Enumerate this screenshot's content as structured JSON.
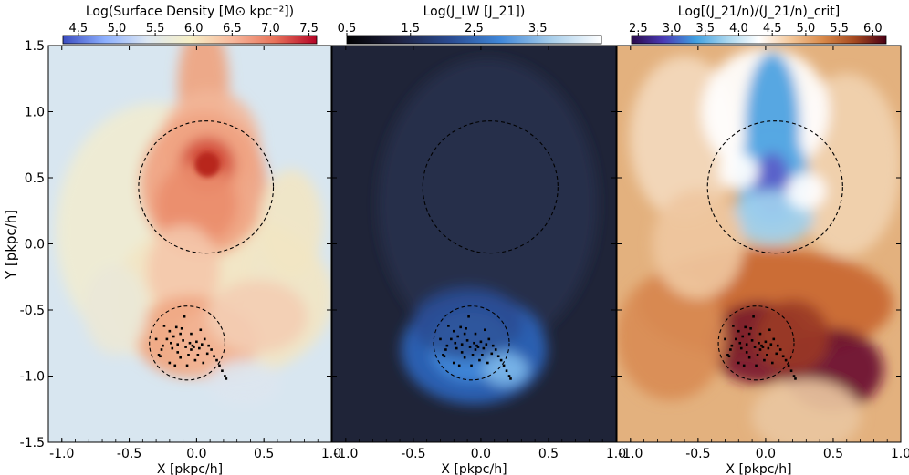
{
  "figure": {
    "shared_ylabel": "Y [pkpc/h]"
  },
  "chart_data": [
    {
      "type": "heatmap",
      "panel": "surface-density",
      "colorbar": {
        "title": "Log(Surface Density [M⊙ kpc⁻²])",
        "ticks": [
          "4.5",
          "5.0",
          "5.5",
          "6.0",
          "6.5",
          "7.0",
          "7.5"
        ],
        "range": [
          4.3,
          7.6
        ],
        "cmap": [
          "#3b4cc0",
          "#8db0fe",
          "#dde7f2",
          "#f6efc6",
          "#f7b89c",
          "#e8735a",
          "#b40426"
        ]
      },
      "xlabel": "X [pkpc/h]",
      "ylabel": "Y [pkpc/h]",
      "xlim": [
        -1.1,
        1.0
      ],
      "ylim": [
        -1.5,
        1.5
      ],
      "x_ticks": [
        "-1.0",
        "-0.5",
        "0.0",
        "0.5",
        "1.0"
      ],
      "y_ticks": [
        "1.5",
        "1.0",
        "0.5",
        "0.0",
        "-0.5",
        "-1.0",
        "-1.5"
      ],
      "circles": [
        {
          "cx": 0.07,
          "cy": 0.43,
          "r": 0.5
        },
        {
          "cx": -0.07,
          "cy": -0.75,
          "r": 0.28
        }
      ]
    },
    {
      "type": "heatmap",
      "panel": "lw-intensity",
      "colorbar": {
        "title": "Log(J_LW [J_21])",
        "ticks": [
          "0.5",
          "1.5",
          "2.5",
          "3.5"
        ],
        "range": [
          0.5,
          4.5
        ],
        "cmap": [
          "#000000",
          "#1f2240",
          "#2a4a8f",
          "#3f86d8",
          "#a6cdea",
          "#ffffff"
        ]
      },
      "xlabel": "X [pkpc/h]",
      "xlim": [
        -1.1,
        1.0
      ],
      "ylim": [
        -1.5,
        1.5
      ],
      "x_ticks": [
        "-1.0",
        "-0.5",
        "0.0",
        "0.5",
        "1.0"
      ],
      "circles": [
        {
          "cx": 0.07,
          "cy": 0.43,
          "r": 0.5
        },
        {
          "cx": -0.07,
          "cy": -0.75,
          "r": 0.28
        }
      ]
    },
    {
      "type": "heatmap",
      "panel": "critical-ratio",
      "colorbar": {
        "title": "Log[(J_21/n)/(J_21/n)_crit]",
        "ticks": [
          "2.5",
          "3.0",
          "3.5",
          "4.0",
          "4.5",
          "5.0",
          "5.5",
          "6.0"
        ],
        "range": [
          2.4,
          6.2
        ],
        "cmap": [
          "#2a0a4a",
          "#4a3ab5",
          "#3f9fe0",
          "#a8d6ee",
          "#ffffff",
          "#f3c79a",
          "#d98a4a",
          "#a64a20",
          "#4a0015"
        ]
      },
      "xlabel": "X [pkpc/h]",
      "xlim": [
        -1.1,
        1.0
      ],
      "ylim": [
        -1.5,
        1.5
      ],
      "x_ticks": [
        "-1.0",
        "-0.5",
        "0.0",
        "0.5",
        "1.0"
      ],
      "circles": [
        {
          "cx": 0.07,
          "cy": 0.43,
          "r": 0.5
        },
        {
          "cx": -0.07,
          "cy": -0.75,
          "r": 0.28
        }
      ]
    }
  ],
  "scatter_points": [
    [
      -0.24,
      -0.62
    ],
    [
      -0.2,
      -0.66
    ],
    [
      -0.17,
      -0.7
    ],
    [
      -0.15,
      -0.63
    ],
    [
      -0.12,
      -0.68
    ],
    [
      -0.1,
      -0.73
    ],
    [
      -0.22,
      -0.72
    ],
    [
      -0.26,
      -0.8
    ],
    [
      -0.28,
      -0.84
    ],
    [
      -0.27,
      -0.85
    ],
    [
      -0.18,
      -0.79
    ],
    [
      -0.14,
      -0.76
    ],
    [
      -0.08,
      -0.78
    ],
    [
      -0.05,
      -0.75
    ],
    [
      -0.04,
      -0.8
    ],
    [
      -0.02,
      -0.78
    ],
    [
      -0.03,
      -0.77
    ],
    [
      0.0,
      -0.74
    ],
    [
      0.02,
      -0.79
    ],
    [
      0.04,
      -0.76
    ],
    [
      0.06,
      -0.72
    ],
    [
      0.09,
      -0.77
    ],
    [
      0.11,
      -0.8
    ],
    [
      0.13,
      -0.85
    ],
    [
      0.15,
      -0.88
    ],
    [
      0.17,
      -0.92
    ],
    [
      0.19,
      -0.96
    ],
    [
      0.21,
      -1.0
    ],
    [
      0.22,
      -1.02
    ],
    [
      -0.09,
      -0.55
    ],
    [
      -0.2,
      -0.9
    ],
    [
      -0.12,
      -0.86
    ],
    [
      -0.06,
      -0.84
    ],
    [
      0.01,
      -0.84
    ],
    [
      -0.16,
      -0.92
    ],
    [
      -0.3,
      -0.72
    ],
    [
      -0.11,
      -0.64
    ],
    [
      -0.04,
      -0.68
    ],
    [
      0.03,
      -0.65
    ],
    [
      -0.19,
      -0.75
    ],
    [
      -0.25,
      -0.77
    ],
    [
      0.08,
      -0.83
    ],
    [
      -0.01,
      -0.88
    ],
    [
      -0.07,
      -0.92
    ],
    [
      0.05,
      -0.9
    ],
    [
      -0.14,
      -0.82
    ]
  ]
}
